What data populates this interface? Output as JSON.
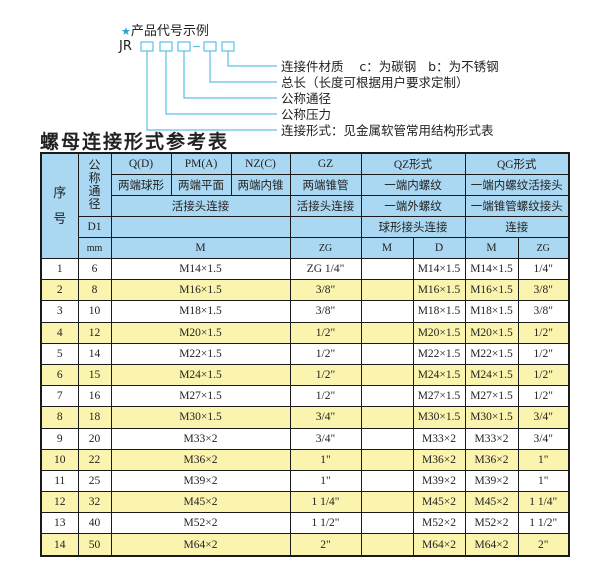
{
  "legend": {
    "star_icon": "star-icon",
    "caption": "产品代号示例",
    "code_prefix": "JR",
    "labels": [
      "连接件材质    c：为碳钢   b：为不锈钢",
      "总长（长度可根据用户要求定制）",
      "公称通径",
      "公称压力",
      "连接形式：见金属软管常用结构形式表"
    ],
    "accent_color": "#5bc0e8"
  },
  "table_title": "螺母连接形式参考表",
  "table": {
    "header": {
      "seq": "序号",
      "nominal": "公称通径",
      "row1": [
        "Q(D)",
        "PM(A)",
        "NZ(C)",
        "GZ",
        "QZ形式",
        "QG形式"
      ],
      "row2": [
        "两端球形",
        "两端平面",
        "两端内锥",
        "两端锥管",
        "一端内螺纹",
        "一端内螺纹活接头"
      ],
      "row3": [
        "活接头连接",
        "活接头连接",
        "一端外螺纹",
        "一端锥管螺纹接头"
      ],
      "row4": [
        "D1",
        "",
        "",
        "球形接头连接",
        "连接"
      ],
      "row5": [
        "mm",
        "M",
        "ZG",
        "M",
        "D",
        "M",
        "ZG"
      ]
    },
    "rows": [
      [
        "1",
        "6",
        "M14×1.5",
        "ZG 1/4\"",
        "",
        "M14×1.5",
        "M14×1.5",
        "1/4\""
      ],
      [
        "2",
        "8",
        "M16×1.5",
        "3/8\"",
        "",
        "M16×1.5",
        "M16×1.5",
        "3/8\""
      ],
      [
        "3",
        "10",
        "M18×1.5",
        "3/8\"",
        "",
        "M18×1.5",
        "M18×1.5",
        "3/8\""
      ],
      [
        "4",
        "12",
        "M20×1.5",
        "1/2\"",
        "",
        "M20×1.5",
        "M20×1.5",
        "1/2\""
      ],
      [
        "5",
        "14",
        "M22×1.5",
        "1/2\"",
        "",
        "M22×1.5",
        "M22×1.5",
        "1/2\""
      ],
      [
        "6",
        "15",
        "M24×1.5",
        "1/2\"",
        "",
        "M24×1.5",
        "M24×1.5",
        "1/2\""
      ],
      [
        "7",
        "16",
        "M27×1.5",
        "1/2\"",
        "",
        "M27×1.5",
        "M27×1.5",
        "1/2\""
      ],
      [
        "8",
        "18",
        "M30×1.5",
        "3/4\"",
        "",
        "M30×1.5",
        "M30×1.5",
        "3/4\""
      ],
      [
        "9",
        "20",
        "M33×2",
        "3/4\"",
        "",
        "M33×2",
        "M33×2",
        "3/4\""
      ],
      [
        "10",
        "22",
        "M36×2",
        "1\"",
        "",
        "M36×2",
        "M36×2",
        "1\""
      ],
      [
        "11",
        "25",
        "M39×2",
        "1\"",
        "",
        "M39×2",
        "M39×2",
        "1\""
      ],
      [
        "12",
        "32",
        "M45×2",
        "1 1/4\"",
        "",
        "M45×2",
        "M45×2",
        "1 1/4\""
      ],
      [
        "13",
        "40",
        "M52×2",
        "1 1/2\"",
        "",
        "M52×2",
        "M52×2",
        "1 1/2\""
      ],
      [
        "14",
        "50",
        "M64×2",
        "2\"",
        "",
        "M64×2",
        "M64×2",
        "2\""
      ]
    ],
    "colors": {
      "header_bg": "#aad8f2",
      "alt_row_bg": "#fbf4ae"
    }
  }
}
